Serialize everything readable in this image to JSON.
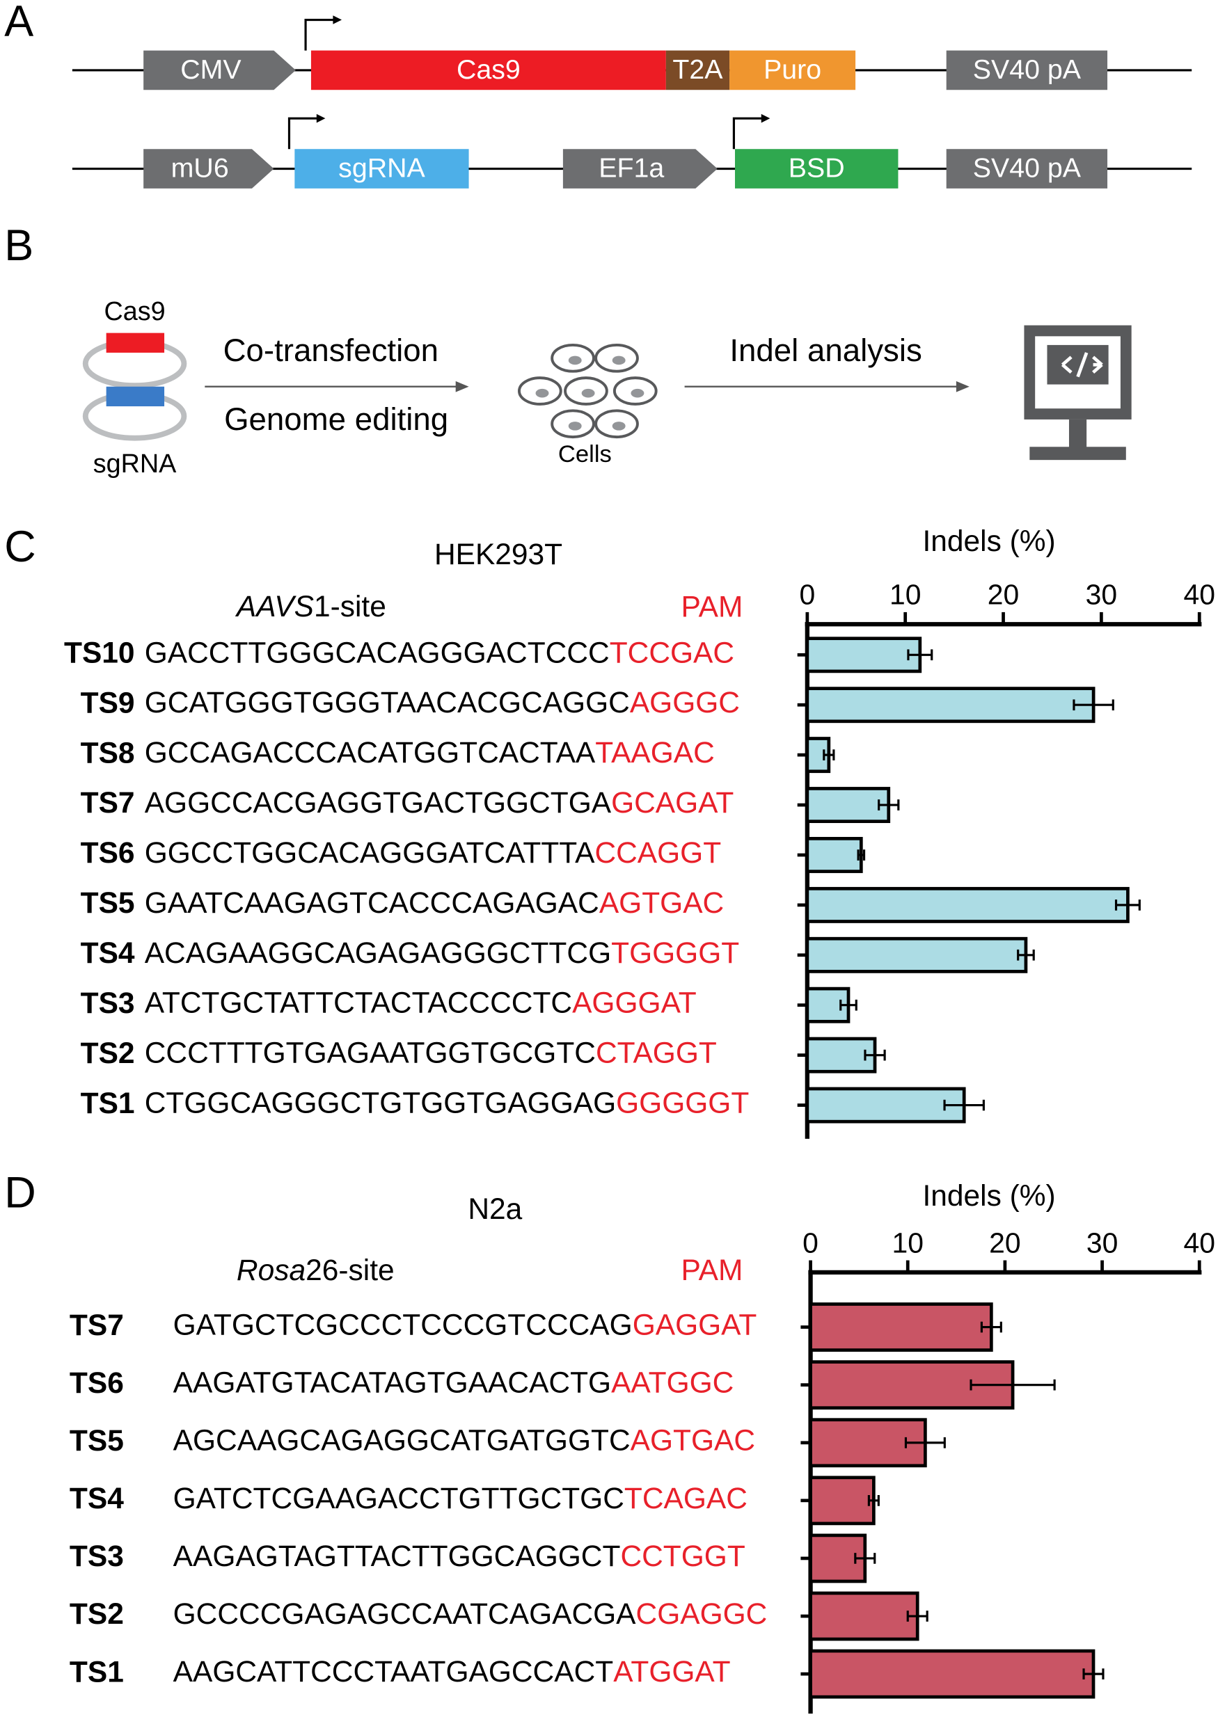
{
  "panel_labels": [
    "A",
    "B",
    "C",
    "D"
  ],
  "constructs": [
    [
      {
        "label": "CMV"
      },
      {
        "label": "Cas9"
      },
      {
        "label": "T2A"
      },
      {
        "label": "Puro"
      },
      {
        "label": "SV40 pA"
      }
    ],
    [
      {
        "label": "mU6"
      },
      {
        "label": "sgRNA"
      },
      {
        "label": "EF1a"
      },
      {
        "label": "BSD"
      },
      {
        "label": "SV40 pA"
      }
    ]
  ],
  "workflow": {
    "plasmid_top": "Cas9",
    "plasmid_bottom": "sgRNA",
    "step1_top": "Co-transfection",
    "step1_bottom": "Genome editing",
    "cells": "Cells",
    "step2": "Indel analysis"
  },
  "chart_data": [
    {
      "type": "bar",
      "orientation": "horizontal",
      "title": "HEK293T",
      "site_italic": "AAVS",
      "site_rest": "1-site",
      "pam_header": "PAM",
      "xlabel": "Indels (%)",
      "categories": [
        "TS10",
        "TS9",
        "TS8",
        "TS7",
        "TS6",
        "TS5",
        "TS4",
        "TS3",
        "TS2",
        "TS1"
      ],
      "sequences": [
        "GACCTTGGGCACAGGGACTCCC",
        "GCATGGGTGGGTAACACGCAGGC",
        "GCCAGACCCACATGGTCACTAA",
        "AGGCCACGAGGTGACTGGCTGA",
        "GGCCTGGCACAGGGATCATTTA",
        "GAATCAAGAGTCACCCAGAGAC",
        "ACAGAAGGCAGAGAGGGCTTCG",
        "ATCTGCTATTCTACTACCCCTC",
        "CCCTTTGTGAGAATGGTGCGTC",
        "CTGGCAGGGCTGTGGTGAGGAG"
      ],
      "pams": [
        "TCCGAC",
        "AGGGC",
        "TAAGAC",
        "GCAGAT",
        "CCAGGT",
        "AGTGAC",
        "TGGGGT",
        "AGGGAT",
        "CTAGGT",
        "GGGGGT"
      ],
      "values": [
        11.5,
        29.2,
        2.2,
        8.3,
        5.5,
        32.7,
        22.3,
        4.2,
        6.9,
        16.0
      ],
      "errors": [
        1.2,
        2.0,
        0.5,
        1.0,
        0.3,
        1.2,
        0.8,
        0.8,
        1.0,
        2.0
      ],
      "color": "#acdce4",
      "xlim": [
        0,
        40
      ],
      "xticks": [
        0,
        10,
        20,
        30,
        40
      ]
    },
    {
      "type": "bar",
      "orientation": "horizontal",
      "title": "N2a",
      "site_italic": "Rosa",
      "site_rest": "26-site",
      "pam_header": "PAM",
      "xlabel": "Indels (%)",
      "categories": [
        "TS7",
        "TS6",
        "TS5",
        "TS4",
        "TS3",
        "TS2",
        "TS1"
      ],
      "sequences": [
        "GATGCTCGCCCTCCCGTCCCAG",
        "AAGATGTACATAGTGAACACTG",
        "AGCAAGCAGAGGCATGATGGTC",
        "GATCTCGAAGACCTGTTGCTGC",
        "AAGAGTAGTTACTTGGCAGGCT",
        "GCCCCGAGAGCCAATCAGACGA",
        "AAGCATTCCCTAATGAGCCACT"
      ],
      "pams": [
        "GAGGAT",
        "AATGGC",
        "AGTGAC",
        "TCAGAC",
        "CCTGGT",
        "CGAGGC",
        "ATGGAT"
      ],
      "values": [
        18.6,
        20.8,
        11.8,
        6.5,
        5.6,
        11.0,
        29.1
      ],
      "errors": [
        1.0,
        4.3,
        2.0,
        0.5,
        1.0,
        1.0,
        1.0
      ],
      "color": "#c95565",
      "xlim": [
        0,
        40
      ],
      "xticks": [
        0,
        10,
        20,
        30,
        40
      ]
    }
  ]
}
